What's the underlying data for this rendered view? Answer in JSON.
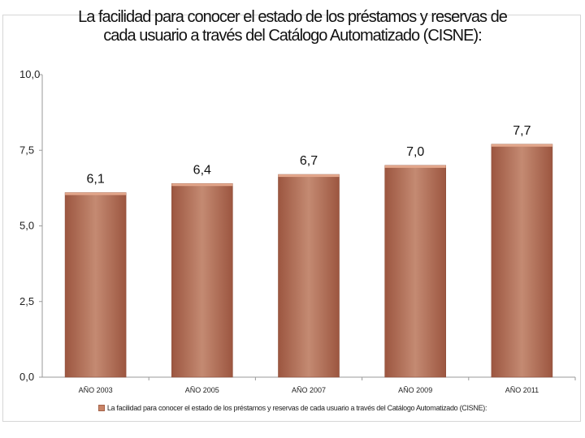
{
  "chart_data": {
    "type": "bar",
    "title": "La facilidad para conocer el estado de los préstamos y reservas de cada usuario a través del Catálogo Automatizado (CISNE):",
    "title_lines": [
      "La facilidad para conocer el estado de los préstamos y reservas de",
      "cada usuario a través del Catálogo Automatizado (CISNE):"
    ],
    "categories": [
      "AÑO 2003",
      "AÑO 2005",
      "AÑO 2007",
      "AÑO 2009",
      "AÑO 2011"
    ],
    "series": [
      {
        "name": "La facilidad para conocer el estado de los préstamos y reservas de cada usuario a través del Catálogo Automatizado (CISNE):",
        "values": [
          6.1,
          6.4,
          6.7,
          7.0,
          7.7
        ],
        "data_labels": [
          "6,1",
          "6,4",
          "6,7",
          "7,0",
          "7,7"
        ]
      }
    ],
    "ylim": [
      0,
      10
    ],
    "yticks": [
      0,
      2.5,
      5,
      7.5,
      10
    ],
    "ytick_labels": [
      "0,0",
      "2,5",
      "5,0",
      "7,5",
      "10,0"
    ],
    "xlabel": "",
    "ylabel": "",
    "grid": false,
    "legend_position": "bottom",
    "colors": {
      "bar_center": "#c48a72",
      "bar_edge": "#9c5640",
      "bar_top": "#e3a78c",
      "axis": "#9a9a9a"
    }
  }
}
